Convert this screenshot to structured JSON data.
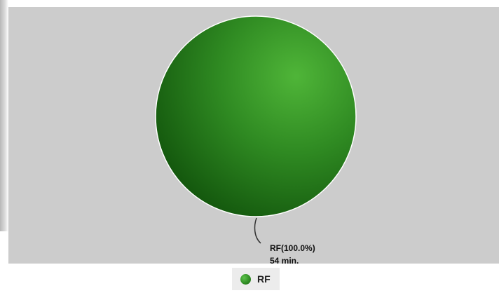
{
  "chart_data": {
    "type": "pie",
    "title": "",
    "slices": [
      {
        "label": "RF",
        "percent": 100.0,
        "value": 54,
        "unit": "min.",
        "label_line1": "RF(100.0%)",
        "label_line2": "54 min.",
        "color": "#2e8a22"
      }
    ],
    "legend": {
      "placement": "bottom-center",
      "entries": [
        "RF"
      ]
    },
    "background_color": "#cccccc"
  }
}
